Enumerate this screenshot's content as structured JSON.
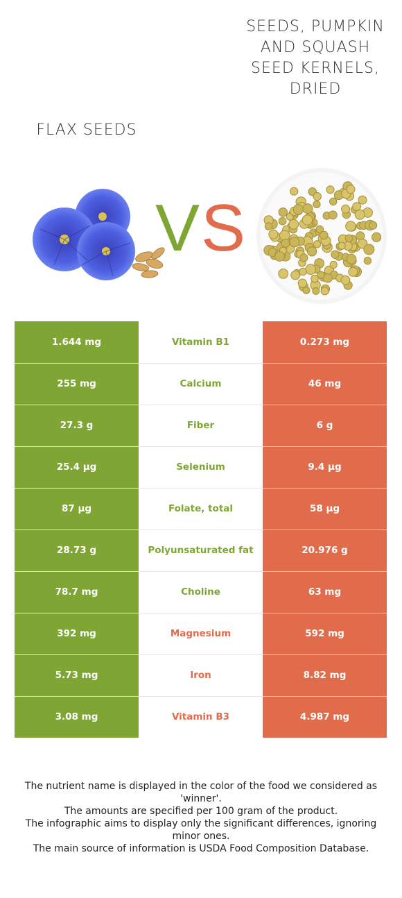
{
  "foods": {
    "left": "Flax seeds",
    "right": "Seeds, pumpkin and squash seed kernels, dried"
  },
  "vs": {
    "v": "V",
    "s": "S"
  },
  "colors": {
    "left": "#7fa534",
    "right": "#e06c4b"
  },
  "rows": [
    {
      "nutrient": "Vitamin B1",
      "left": "1.644 mg",
      "right": "0.273 mg",
      "winner": "left"
    },
    {
      "nutrient": "Calcium",
      "left": "255 mg",
      "right": "46 mg",
      "winner": "left"
    },
    {
      "nutrient": "Fiber",
      "left": "27.3 g",
      "right": "6 g",
      "winner": "left"
    },
    {
      "nutrient": "Selenium",
      "left": "25.4 µg",
      "right": "9.4 µg",
      "winner": "left"
    },
    {
      "nutrient": "Folate, total",
      "left": "87 µg",
      "right": "58 µg",
      "winner": "left"
    },
    {
      "nutrient": "Polyunsaturated fat",
      "left": "28.73 g",
      "right": "20.976 g",
      "winner": "left"
    },
    {
      "nutrient": "Choline",
      "left": "78.7 mg",
      "right": "63 mg",
      "winner": "left"
    },
    {
      "nutrient": "Magnesium",
      "left": "392 mg",
      "right": "592 mg",
      "winner": "right"
    },
    {
      "nutrient": "Iron",
      "left": "5.73 mg",
      "right": "8.82 mg",
      "winner": "right"
    },
    {
      "nutrient": "Vitamin B3",
      "left": "3.08 mg",
      "right": "4.987 mg",
      "winner": "right"
    }
  ],
  "notes": [
    "The nutrient name is displayed in the color of the food we considered as 'winner'.",
    "The amounts are specified per 100 gram of the product.",
    "The infographic aims to display only the significant differences, ignoring minor ones.",
    "The main source of information is USDA Food Composition Database."
  ]
}
